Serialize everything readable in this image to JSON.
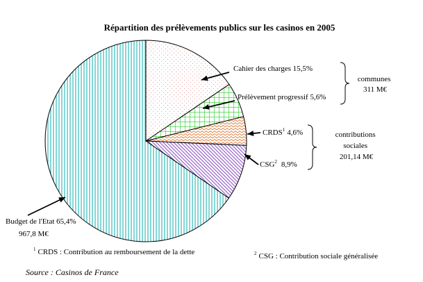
{
  "chart_data": {
    "type": "pie",
    "title": "Répartition des prélèvements publics sur les casinos en 2005",
    "slices": [
      {
        "label": "Cahier des charges",
        "value_label": "15,5%",
        "value": 15.5
      },
      {
        "label": "Prélèvement progressif",
        "value_label": "5,6%",
        "value": 5.6
      },
      {
        "label": "CRDS",
        "sup": "1",
        "value_label": "4,6%",
        "value": 4.6
      },
      {
        "label": "CSG",
        "sup": "2",
        "value_label": "8,9%",
        "value": 8.9
      },
      {
        "label": "Budget de l'Etat",
        "value_label": "65,4%",
        "value": 65.4,
        "amount": "967,8 M€"
      }
    ],
    "groups": [
      {
        "label_lines": [
          "communes",
          "311 M€"
        ],
        "members": [
          "Cahier des charges",
          "Prélèvement progressif"
        ]
      },
      {
        "label_lines": [
          "contributions",
          "sociales",
          "201,14 M€"
        ],
        "members": [
          "CRDS",
          "CSG"
        ]
      }
    ],
    "footnotes": [
      {
        "sup": "1",
        "text": "CRDS : Contribution au remboursement de la dette"
      },
      {
        "sup": "2",
        "text": "CSG : Contribution sociale généralisée"
      }
    ],
    "source": "Source :  Casinos de France",
    "colors": {
      "cahier": "#e8a0a0",
      "progressif": "#22cc22",
      "crds": "#e08040",
      "csg": "#9966cc",
      "budget": "#33bbbb"
    }
  }
}
